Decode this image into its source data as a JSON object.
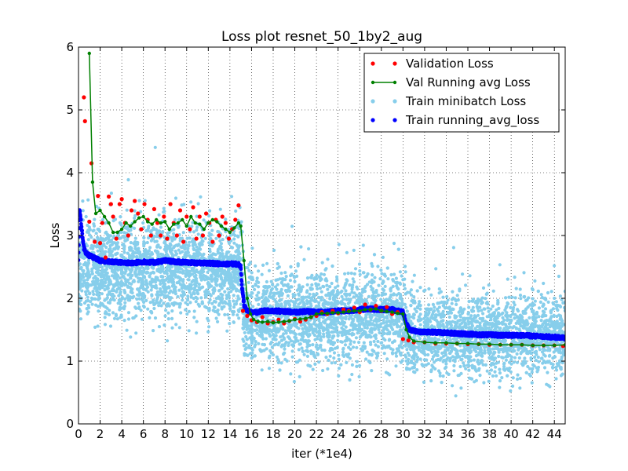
{
  "chart_data": {
    "type": "scatter",
    "title": "Loss plot resnet_50_1by2_aug",
    "xlabel": "iter (*1e4)",
    "ylabel": "Loss",
    "xlim": [
      0,
      45
    ],
    "ylim": [
      0,
      6
    ],
    "x_ticks": [
      "0",
      "2",
      "4",
      "6",
      "8",
      "10",
      "12",
      "14",
      "16",
      "18",
      "20",
      "22",
      "24",
      "26",
      "28",
      "30",
      "32",
      "34",
      "36",
      "38",
      "40",
      "42",
      "44"
    ],
    "y_ticks": [
      "0",
      "1",
      "2",
      "3",
      "4",
      "5",
      "6"
    ],
    "grid": true,
    "legend_position": "top-right",
    "series": [
      {
        "name": "Validation Loss",
        "color": "#ff0000",
        "marker": "dot",
        "x": [
          0.5,
          0.6,
          1.0,
          1.2,
          1.5,
          1.8,
          2.0,
          2.2,
          2.5,
          2.8,
          3.0,
          3.2,
          3.5,
          3.8,
          4.0,
          4.3,
          4.6,
          4.9,
          5.2,
          5.5,
          5.8,
          6.1,
          6.4,
          6.7,
          7.0,
          7.3,
          7.6,
          7.9,
          8.2,
          8.5,
          8.8,
          9.1,
          9.4,
          9.7,
          10.0,
          10.3,
          10.6,
          10.9,
          11.2,
          11.5,
          11.8,
          12.1,
          12.4,
          12.7,
          13.0,
          13.3,
          13.6,
          13.9,
          14.2,
          14.5,
          14.8,
          15.2,
          15.6,
          16.0,
          16.5,
          17.0,
          17.5,
          18.0,
          18.5,
          19.0,
          19.5,
          20.0,
          20.5,
          21.0,
          21.5,
          22.0,
          22.5,
          23.0,
          23.5,
          24.0,
          24.5,
          25.0,
          25.5,
          26.0,
          26.5,
          27.0,
          27.5,
          28.0,
          28.5,
          29.0,
          29.5,
          30.0,
          30.5,
          31.0,
          32.0,
          33.0,
          34.0,
          35.0,
          36.0,
          37.0,
          38.0,
          39.0,
          40.0,
          41.0,
          42.0,
          43.0,
          44.0,
          44.8
        ],
        "y": [
          5.2,
          4.82,
          3.22,
          4.15,
          2.9,
          3.63,
          2.88,
          3.2,
          2.65,
          3.62,
          3.5,
          3.3,
          2.95,
          3.5,
          3.58,
          3.2,
          3.0,
          3.4,
          3.55,
          3.35,
          3.1,
          3.5,
          3.25,
          3.0,
          3.42,
          3.2,
          3.0,
          3.3,
          2.95,
          3.5,
          3.2,
          3.0,
          3.4,
          2.9,
          3.3,
          3.1,
          3.45,
          2.95,
          3.3,
          3.0,
          3.35,
          3.2,
          2.9,
          3.25,
          3.0,
          3.3,
          3.2,
          2.95,
          3.1,
          3.25,
          3.48,
          1.8,
          1.72,
          1.65,
          1.62,
          1.7,
          1.6,
          1.62,
          1.66,
          1.6,
          1.64,
          1.67,
          1.63,
          1.66,
          1.7,
          1.72,
          1.78,
          1.75,
          1.8,
          1.76,
          1.82,
          1.8,
          1.85,
          1.78,
          1.9,
          1.82,
          1.88,
          1.8,
          1.86,
          1.75,
          1.78,
          1.35,
          1.33,
          1.3,
          1.3,
          1.28,
          1.28,
          1.28,
          1.27,
          1.27,
          1.26,
          1.26,
          1.26,
          1.26,
          1.25,
          1.25,
          1.25,
          1.24
        ]
      },
      {
        "name": "Val Running avg Loss",
        "color": "#008000",
        "marker": "line-dot",
        "x": [
          1.0,
          1.3,
          1.6,
          2.0,
          2.4,
          2.8,
          3.2,
          3.6,
          4.0,
          4.4,
          4.8,
          5.2,
          5.6,
          6.0,
          6.4,
          6.8,
          7.2,
          7.6,
          8.0,
          8.4,
          8.8,
          9.2,
          9.6,
          10.0,
          10.4,
          10.8,
          11.2,
          11.6,
          12.0,
          12.4,
          12.8,
          13.2,
          13.6,
          14.0,
          14.4,
          14.8,
          15.0,
          15.3,
          15.6,
          15.9,
          16.2,
          16.6,
          17.0,
          17.5,
          18.0,
          18.5,
          19.0,
          19.5,
          20.0,
          20.5,
          21.0,
          21.5,
          22.0,
          22.5,
          23.0,
          23.5,
          24.0,
          24.5,
          25.0,
          25.5,
          26.0,
          26.5,
          27.0,
          27.5,
          28.0,
          28.5,
          29.0,
          29.5,
          30.0,
          30.3,
          30.6,
          31.0,
          32.0,
          33.0,
          34.0,
          35.0,
          36.0,
          37.0,
          38.0,
          39.0,
          40.0,
          41.0,
          42.0,
          43.0,
          44.0,
          45.0
        ],
        "y": [
          5.9,
          3.85,
          3.35,
          3.4,
          3.3,
          3.2,
          3.05,
          3.05,
          3.1,
          3.2,
          3.15,
          3.22,
          3.28,
          3.3,
          3.22,
          3.18,
          3.25,
          3.2,
          3.22,
          3.1,
          3.18,
          3.2,
          3.25,
          3.15,
          3.3,
          3.2,
          3.18,
          3.1,
          3.2,
          3.25,
          3.22,
          3.15,
          3.1,
          3.05,
          3.12,
          3.2,
          3.15,
          2.6,
          2.0,
          1.75,
          1.66,
          1.63,
          1.62,
          1.63,
          1.61,
          1.62,
          1.63,
          1.64,
          1.66,
          1.67,
          1.68,
          1.7,
          1.75,
          1.76,
          1.76,
          1.77,
          1.77,
          1.78,
          1.79,
          1.8,
          1.8,
          1.82,
          1.82,
          1.83,
          1.8,
          1.79,
          1.78,
          1.76,
          1.75,
          1.5,
          1.38,
          1.32,
          1.3,
          1.29,
          1.29,
          1.28,
          1.28,
          1.27,
          1.27,
          1.26,
          1.26,
          1.26,
          1.25,
          1.25,
          1.25,
          1.26
        ]
      },
      {
        "name": "Train minibatch Loss",
        "color": "#87ceeb",
        "marker": "dot",
        "segments": [
          {
            "x_range": [
              0,
              15.2
            ],
            "center": 2.45,
            "spread": 0.85
          },
          {
            "x_range": [
              15.2,
              30.2
            ],
            "center": 1.72,
            "spread": 0.82
          },
          {
            "x_range": [
              30.2,
              45
            ],
            "center": 1.42,
            "spread": 0.72
          }
        ]
      },
      {
        "name": "Train running_avg_loss",
        "color": "#0000ff",
        "marker": "dot",
        "x": [
          0.0,
          0.1,
          0.2,
          0.3,
          0.4,
          0.5,
          0.7,
          1.0,
          1.5,
          2.0,
          3.0,
          4.0,
          5.0,
          6.0,
          7.0,
          8.0,
          9.0,
          10.0,
          11.0,
          12.0,
          13.0,
          14.0,
          14.8,
          15.0,
          15.1,
          15.3,
          15.6,
          16.0,
          16.5,
          17.0,
          18.0,
          19.0,
          20.0,
          21.0,
          22.0,
          23.0,
          24.0,
          25.0,
          26.0,
          27.0,
          28.0,
          29.0,
          29.5,
          30.0,
          30.3,
          30.6,
          31.0,
          32.0,
          33.0,
          34.0,
          35.0,
          36.0,
          37.0,
          38.0,
          39.0,
          40.0,
          41.0,
          42.0,
          43.0,
          44.0,
          45.0
        ],
        "y": [
          2.6,
          3.4,
          3.3,
          3.1,
          2.95,
          2.8,
          2.72,
          2.68,
          2.64,
          2.6,
          2.58,
          2.57,
          2.56,
          2.58,
          2.57,
          2.6,
          2.58,
          2.57,
          2.56,
          2.56,
          2.55,
          2.55,
          2.54,
          2.5,
          2.2,
          1.9,
          1.8,
          1.78,
          1.77,
          1.8,
          1.8,
          1.79,
          1.78,
          1.79,
          1.78,
          1.78,
          1.8,
          1.8,
          1.82,
          1.83,
          1.82,
          1.82,
          1.8,
          1.78,
          1.6,
          1.5,
          1.48,
          1.46,
          1.46,
          1.45,
          1.44,
          1.43,
          1.42,
          1.42,
          1.41,
          1.41,
          1.41,
          1.4,
          1.39,
          1.38,
          1.37
        ]
      }
    ]
  }
}
